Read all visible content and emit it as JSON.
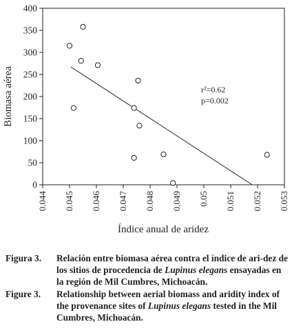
{
  "chart_data": {
    "type": "scatter",
    "xlabel": "Índice anual de aridez",
    "ylabel": "Biomasa aérea",
    "xlim": [
      0.044,
      0.053
    ],
    "ylim": [
      0,
      400
    ],
    "x_ticks": [
      "0.044",
      "0.045",
      "0.046",
      "0.047",
      "0.048",
      "0.049",
      "0.05",
      "0.051",
      "0.052",
      "0.053"
    ],
    "x_tick_values": [
      0.044,
      0.045,
      0.046,
      0.047,
      0.048,
      0.049,
      0.05,
      0.051,
      0.052,
      0.053
    ],
    "y_ticks": [
      "0",
      "50",
      "100",
      "150",
      "200",
      "250",
      "300",
      "350",
      "400"
    ],
    "y_tick_values": [
      0,
      50,
      100,
      150,
      200,
      250,
      300,
      350,
      400
    ],
    "grid": false,
    "points": [
      {
        "x": 0.045,
        "y": 315
      },
      {
        "x": 0.04515,
        "y": 174
      },
      {
        "x": 0.04543,
        "y": 281
      },
      {
        "x": 0.0455,
        "y": 358
      },
      {
        "x": 0.04605,
        "y": 271
      },
      {
        "x": 0.0474,
        "y": 174
      },
      {
        "x": 0.0474,
        "y": 61
      },
      {
        "x": 0.04755,
        "y": 236
      },
      {
        "x": 0.0476,
        "y": 134
      },
      {
        "x": 0.0485,
        "y": 69
      },
      {
        "x": 0.04885,
        "y": 4
      },
      {
        "x": 0.05235,
        "y": 68
      }
    ],
    "trendline": {
      "x": [
        0.04505,
        0.0518
      ],
      "y": [
        267,
        0
      ]
    },
    "annotations": [
      "r²=0.62",
      "p=0.002"
    ]
  },
  "captions": [
    {
      "label": "Figura 3.",
      "text_before": "Relación entre biomasa aérea contra el índice de ari-dez de los sitios de procedencia de ",
      "species": "Lupinus elegans",
      "text_after": " ensayadas en la región de Mil Cumbres, Michoacán."
    },
    {
      "label": "Figure 3.",
      "text_before": "Relationship between aerial biomass and aridity index of the provenance sites of ",
      "species": "Lupinus elegans",
      "text_after": " tested in the Mil Cumbres, Michoacán."
    }
  ]
}
